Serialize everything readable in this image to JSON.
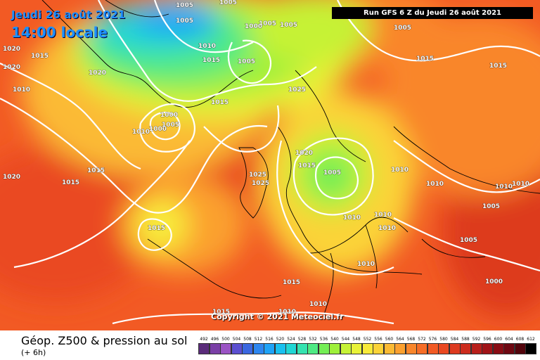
{
  "header": {
    "date_line": "Jeudi 26 août 2021",
    "time_line": "14:00 locale",
    "run_line": "Run GFS 6 Z du Jeudi 26 août 2021"
  },
  "watermark": "Copyright © 2021 Meteociel.fr",
  "footer": {
    "caption": "Géop. Z500 & pression au sol",
    "lead_time": "(+ 6h)"
  },
  "legend": {
    "levels": [
      "492",
      "496",
      "500",
      "504",
      "508",
      "512",
      "516",
      "520",
      "524",
      "528",
      "532",
      "536",
      "540",
      "544",
      "548",
      "552",
      "556",
      "560",
      "564",
      "568",
      "572",
      "576",
      "580",
      "584",
      "588",
      "592",
      "596",
      "600",
      "604",
      "608",
      "612"
    ],
    "colors": [
      "#5a2b7a",
      "#7a3fa6",
      "#9a53c4",
      "#5b4fd0",
      "#3a67e0",
      "#2d86ef",
      "#1ea3f7",
      "#18c0ef",
      "#20d6d4",
      "#34e3b0",
      "#4eea84",
      "#74ee55",
      "#9ef03a",
      "#c6f236",
      "#e8f238",
      "#f8ea3a",
      "#fbd338",
      "#fbba34",
      "#fba02f",
      "#f9862b",
      "#f66d27",
      "#f25a24",
      "#ea4821",
      "#dd3a1f",
      "#cc2b1d",
      "#b81e1a",
      "#a01317",
      "#880c14",
      "#6e0711",
      "#52040c",
      "#000000"
    ]
  },
  "isobar_labels": [
    "1020",
    "1020",
    "1015",
    "1005",
    "1005",
    "1000",
    "1005",
    "1005",
    "1010",
    "1015",
    "1005",
    "1000",
    "1005",
    "1020",
    "1015",
    "1025",
    "1015",
    "1010",
    "1015",
    "1000",
    "1005",
    "1010",
    "1005",
    "1005",
    "1015",
    "1020",
    "1015",
    "1025",
    "1025",
    "1020",
    "1015",
    "1005",
    "1010",
    "1010",
    "1010",
    "1010",
    "1015",
    "1005",
    "1010",
    "1000",
    "1010",
    "1010",
    "1015",
    "1010",
    "1010",
    "1015",
    "1010"
  ]
}
